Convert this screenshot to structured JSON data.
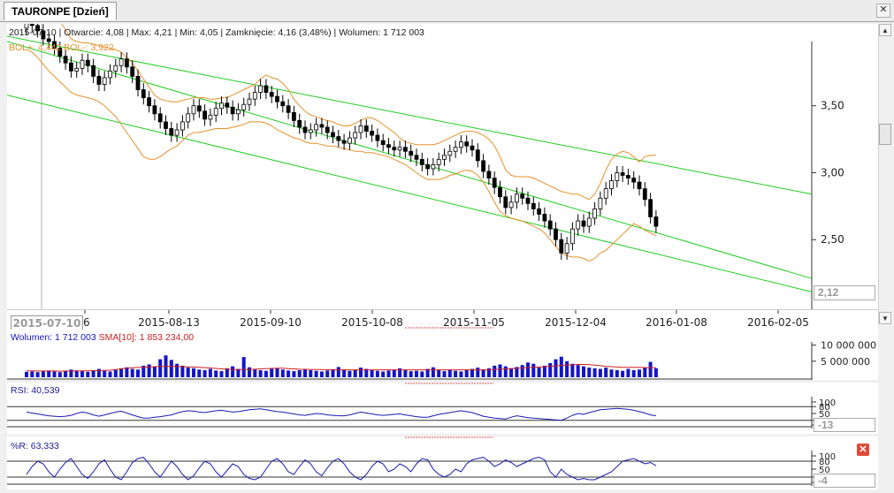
{
  "tab": {
    "title": "TAURONPE [Dzień]",
    "close_glyph": "✕"
  },
  "info_line": {
    "date": "2015-07-10",
    "open": "Otwarcie: 4,08",
    "max": "Max: 4,21",
    "min": "Min: 4,05",
    "close": "Zamknięcie: 4,16 (3,48%)",
    "volume": "Wolumen: 1 712 003"
  },
  "bol_label": "BOL+: 4,442 BOL-: 3,922",
  "date_marker": "2015-07-10",
  "price_box": "2,12",
  "volume_label": "Wolumen: 1 712 003",
  "sma_label": "SMA[10]: 1 853 234,00",
  "rsi_label": "RSI: 40,539",
  "wr_label": "%R: 63,333",
  "rsi_box": "-13",
  "wr_box": "-4",
  "scroll_up_glyph": "▲",
  "scroll_down_glyph": "▼",
  "close_x_glyph": "✕",
  "colors": {
    "up": "#2a9a2a",
    "down": "#cc0000",
    "boll": "#e8902a",
    "channel": "#22cc22",
    "volume": "#1414c8",
    "sma": "#cc2020",
    "osc": "#1a1ab0"
  },
  "chart_data": {
    "type": "candlestick",
    "x_tick_labels": [
      "6",
      "2015-08-13",
      "2015-09-10",
      "2015-10-08",
      "2015-11-05",
      "2015-12-04",
      "2016-01-08",
      "2016-02-05"
    ],
    "y_tick_labels": [
      "3,50",
      "3,00",
      "2,50"
    ],
    "ylim": [
      2.0,
      3.98
    ],
    "volume_ticks": [
      "10 000 000",
      "5 000 000"
    ],
    "osc_ticks": [
      "100",
      "80",
      "50",
      "20",
      "0"
    ],
    "close": [
      4.16,
      4.1,
      4.06,
      4.0,
      3.98,
      3.93,
      3.87,
      3.82,
      3.76,
      3.78,
      3.84,
      3.8,
      3.72,
      3.66,
      3.71,
      3.76,
      3.8,
      3.85,
      3.79,
      3.72,
      3.62,
      3.56,
      3.5,
      3.44,
      3.38,
      3.33,
      3.28,
      3.32,
      3.38,
      3.44,
      3.5,
      3.46,
      3.4,
      3.43,
      3.48,
      3.52,
      3.49,
      3.44,
      3.47,
      3.51,
      3.55,
      3.6,
      3.65,
      3.6,
      3.57,
      3.53,
      3.5,
      3.45,
      3.39,
      3.34,
      3.3,
      3.32,
      3.36,
      3.34,
      3.3,
      3.27,
      3.24,
      3.22,
      3.26,
      3.3,
      3.35,
      3.31,
      3.28,
      3.24,
      3.21,
      3.19,
      3.17,
      3.19,
      3.16,
      3.13,
      3.1,
      3.06,
      3.03,
      3.06,
      3.1,
      3.13,
      3.16,
      3.19,
      3.23,
      3.2,
      3.17,
      3.09,
      3.01,
      2.96,
      2.89,
      2.82,
      2.74,
      2.78,
      2.84,
      2.81,
      2.77,
      2.73,
      2.69,
      2.64,
      2.58,
      2.5,
      2.4,
      2.47,
      2.58,
      2.64,
      2.6,
      2.66,
      2.73,
      2.81,
      2.88,
      2.94,
      3.0,
      2.98,
      2.96,
      2.93,
      2.88,
      2.8,
      2.67,
      2.6
    ],
    "bol_upper": [
      4.44,
      4.42,
      4.38,
      4.33,
      4.27,
      4.2,
      4.13,
      4.07,
      4.0,
      3.98,
      3.97,
      3.97,
      3.96,
      3.95,
      3.94,
      3.93,
      3.92,
      3.9,
      3.86,
      3.82,
      3.76,
      3.7,
      3.64,
      3.58,
      3.55,
      3.54,
      3.53,
      3.53,
      3.54,
      3.55,
      3.56,
      3.56,
      3.56,
      3.55,
      3.55,
      3.56,
      3.56,
      3.58,
      3.6,
      3.62,
      3.64,
      3.66,
      3.7,
      3.73,
      3.71,
      3.7,
      3.67,
      3.62,
      3.55,
      3.5,
      3.46,
      3.43,
      3.42,
      3.4,
      3.39,
      3.38,
      3.36,
      3.35,
      3.35,
      3.37,
      3.39,
      3.41,
      3.41,
      3.39,
      3.36,
      3.33,
      3.3,
      3.26,
      3.23,
      3.22,
      3.21,
      3.21,
      3.21,
      3.21,
      3.22,
      3.24,
      3.26,
      3.28,
      3.3,
      3.31,
      3.31,
      3.3,
      3.28,
      3.25,
      3.2,
      3.12,
      3.02,
      2.98,
      2.97,
      2.97,
      2.97,
      2.96,
      2.94,
      2.92,
      2.9,
      2.88,
      2.86,
      2.85,
      2.84,
      2.84,
      2.82,
      2.8,
      2.84,
      2.92,
      3.02,
      3.1,
      3.14,
      3.16,
      3.15,
      3.12,
      3.08,
      3.12,
      3.13,
      3.13
    ],
    "bol_lower": [
      3.92,
      3.9,
      3.86,
      3.81,
      3.76,
      3.72,
      3.68,
      3.64,
      3.6,
      3.58,
      3.57,
      3.56,
      3.55,
      3.53,
      3.5,
      3.46,
      3.42,
      3.36,
      3.3,
      3.24,
      3.18,
      3.12,
      3.1,
      3.1,
      3.12,
      3.15,
      3.18,
      3.2,
      3.24,
      3.28,
      3.3,
      3.3,
      3.31,
      3.32,
      3.33,
      3.33,
      3.33,
      3.34,
      3.35,
      3.36,
      3.38,
      3.38,
      3.38,
      3.37,
      3.35,
      3.32,
      3.3,
      3.28,
      3.26,
      3.25,
      3.23,
      3.22,
      3.22,
      3.21,
      3.2,
      3.2,
      3.19,
      3.18,
      3.17,
      3.16,
      3.16,
      3.15,
      3.15,
      3.14,
      3.13,
      3.12,
      3.1,
      3.08,
      3.06,
      3.03,
      3.0,
      2.97,
      2.95,
      2.95,
      2.95,
      2.96,
      2.98,
      2.99,
      3.01,
      3.02,
      3.01,
      2.98,
      2.93,
      2.86,
      2.78,
      2.71,
      2.68,
      2.66,
      2.65,
      2.64,
      2.62,
      2.6,
      2.58,
      2.55,
      2.5,
      2.45,
      2.4,
      2.38,
      2.37,
      2.37,
      2.36,
      2.34,
      2.36,
      2.4,
      2.42,
      2.46,
      2.5,
      2.54,
      2.58,
      2.62,
      2.6,
      2.57,
      2.55,
      2.53
    ],
    "channel_upper": [
      [
        3.98,
        4.11
      ],
      [
        2.69,
        2.7
      ]
    ],
    "channel_mid": [
      [
        2.12,
        3.53
      ],
      [
        2.27,
        2.26
      ]
    ],
    "channel_lower": [
      [
        2.54,
        3.71
      ],
      [
        2.1,
        2.28
      ]
    ],
    "volume": [
      1.7,
      1.8,
      1.6,
      1.9,
      2.1,
      1.8,
      1.6,
      2.0,
      2.4,
      2.1,
      1.9,
      1.7,
      2.2,
      2.6,
      2.0,
      1.8,
      2.3,
      2.8,
      3.1,
      2.6,
      2.4,
      3.6,
      4.0,
      3.2,
      5.6,
      6.8,
      5.4,
      4.2,
      3.6,
      3.0,
      2.8,
      2.4,
      2.2,
      2.6,
      2.1,
      1.9,
      2.8,
      3.4,
      2.6,
      6.3,
      3.1,
      2.4,
      2.2,
      2.0,
      2.6,
      2.8,
      2.4,
      2.1,
      1.9,
      2.2,
      2.6,
      2.2,
      2.0,
      1.8,
      2.1,
      2.5,
      3.2,
      2.4,
      2.0,
      2.3,
      3.0,
      2.6,
      2.2,
      2.0,
      1.8,
      2.1,
      2.4,
      2.8,
      2.2,
      1.9,
      2.0,
      1.8,
      2.6,
      3.1,
      2.2,
      1.9,
      2.4,
      2.0,
      1.8,
      2.2,
      2.6,
      3.0,
      2.4,
      2.8,
      3.6,
      4.0,
      3.4,
      2.8,
      3.2,
      3.8,
      4.6,
      4.2,
      3.0,
      3.6,
      4.4,
      5.6,
      6.4,
      5.0,
      4.2,
      3.8,
      3.4,
      3.0,
      2.8,
      2.6,
      3.0,
      2.4,
      2.2,
      2.0,
      2.6,
      2.2,
      2.4,
      3.0,
      4.8,
      2.8
    ],
    "sma10": [
      2.0,
      2.0,
      1.95,
      1.95,
      1.95,
      1.95,
      1.9,
      1.95,
      1.95,
      2.0,
      2.0,
      2.0,
      2.05,
      2.1,
      2.15,
      2.2,
      2.4,
      2.6,
      2.8,
      2.95,
      3.05,
      3.1,
      3.2,
      3.3,
      3.35,
      3.4,
      3.4,
      3.35,
      3.3,
      3.25,
      3.2,
      3.1,
      3.0,
      2.9,
      2.75,
      2.6,
      2.5,
      2.45,
      2.4,
      2.4,
      2.4,
      2.5,
      2.6,
      2.7,
      2.75,
      2.8,
      2.8,
      2.7,
      2.6,
      2.5,
      2.45,
      2.45,
      2.4,
      2.4,
      2.35,
      2.3,
      2.3,
      2.3,
      2.3,
      2.3,
      2.3,
      2.3,
      2.3,
      2.3,
      2.3,
      2.3,
      2.3,
      2.3,
      2.3,
      2.3,
      2.3,
      2.3,
      2.3,
      2.3,
      2.3,
      2.3,
      2.3,
      2.3,
      2.3,
      2.3,
      2.3,
      2.3,
      2.3,
      2.3,
      2.4,
      2.5,
      2.6,
      2.7,
      2.8,
      2.9,
      3.0,
      3.1,
      3.2,
      3.3,
      3.4,
      3.5,
      3.7,
      3.8,
      3.9,
      4.0,
      4.0,
      3.9,
      3.8,
      3.6,
      3.4,
      3.3,
      3.2,
      3.1,
      3.1,
      3.1,
      3.1,
      3.0,
      3.0,
      3.0
    ],
    "rsi": [
      56,
      52,
      48,
      44,
      40,
      38,
      36,
      38,
      42,
      50,
      56,
      52,
      44,
      38,
      44,
      50,
      56,
      60,
      52,
      44,
      36,
      30,
      30,
      34,
      36,
      40,
      44,
      52,
      58,
      62,
      60,
      56,
      54,
      58,
      62,
      64,
      60,
      56,
      58,
      62,
      66,
      68,
      70,
      66,
      62,
      58,
      56,
      52,
      48,
      44,
      42,
      46,
      50,
      48,
      44,
      42,
      40,
      40,
      44,
      50,
      56,
      52,
      48,
      44,
      42,
      44,
      46,
      48,
      44,
      40,
      36,
      34,
      34,
      40,
      46,
      50,
      54,
      58,
      62,
      58,
      54,
      46,
      38,
      34,
      30,
      28,
      26,
      34,
      40,
      36,
      32,
      30,
      28,
      26,
      24,
      22,
      20,
      30,
      42,
      50,
      46,
      54,
      60,
      66,
      68,
      70,
      72,
      70,
      68,
      64,
      58,
      52,
      44,
      40
    ],
    "wr": [
      30,
      60,
      80,
      70,
      40,
      20,
      50,
      75,
      90,
      60,
      30,
      15,
      40,
      70,
      85,
      50,
      20,
      10,
      40,
      75,
      90,
      95,
      70,
      40,
      20,
      50,
      80,
      60,
      30,
      10,
      25,
      55,
      80,
      70,
      40,
      20,
      45,
      70,
      60,
      30,
      15,
      10,
      20,
      50,
      80,
      90,
      70,
      40,
      30,
      60,
      85,
      70,
      40,
      25,
      55,
      80,
      90,
      70,
      40,
      20,
      10,
      30,
      60,
      80,
      70,
      40,
      50,
      70,
      60,
      40,
      70,
      90,
      85,
      50,
      30,
      20,
      30,
      50,
      40,
      70,
      85,
      90,
      95,
      80,
      60,
      70,
      85,
      75,
      60,
      70,
      80,
      90,
      95,
      85,
      40,
      20,
      50,
      30,
      20,
      10,
      15,
      10,
      10,
      20,
      30,
      40,
      60,
      80,
      85,
      90,
      80,
      70,
      75,
      63
    ]
  }
}
